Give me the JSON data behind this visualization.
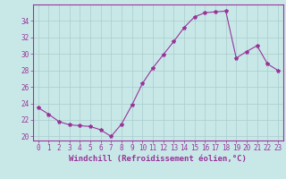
{
  "x": [
    0,
    1,
    2,
    3,
    4,
    5,
    6,
    7,
    8,
    9,
    10,
    11,
    12,
    13,
    14,
    15,
    16,
    17,
    18,
    19,
    20,
    21,
    22,
    23
  ],
  "y": [
    23.5,
    22.7,
    21.8,
    21.4,
    21.3,
    21.2,
    20.8,
    20.0,
    21.5,
    23.8,
    26.4,
    28.3,
    29.9,
    31.5,
    33.2,
    34.5,
    35.0,
    35.1,
    35.2,
    29.5,
    30.3,
    31.0,
    28.8,
    28.0
  ],
  "line_color": "#993399",
  "marker": "*",
  "bg_color": "#c8e8e8",
  "grid_color": "#aacccc",
  "xlabel": "Windchill (Refroidissement éolien,°C)",
  "xlabel_fontsize": 6.5,
  "tick_fontsize": 5.5,
  "ytick_fontsize": 5.5,
  "ylim": [
    19.5,
    36.0
  ],
  "yticks": [
    20,
    22,
    24,
    26,
    28,
    30,
    32,
    34
  ],
  "spine_color": "#993399"
}
